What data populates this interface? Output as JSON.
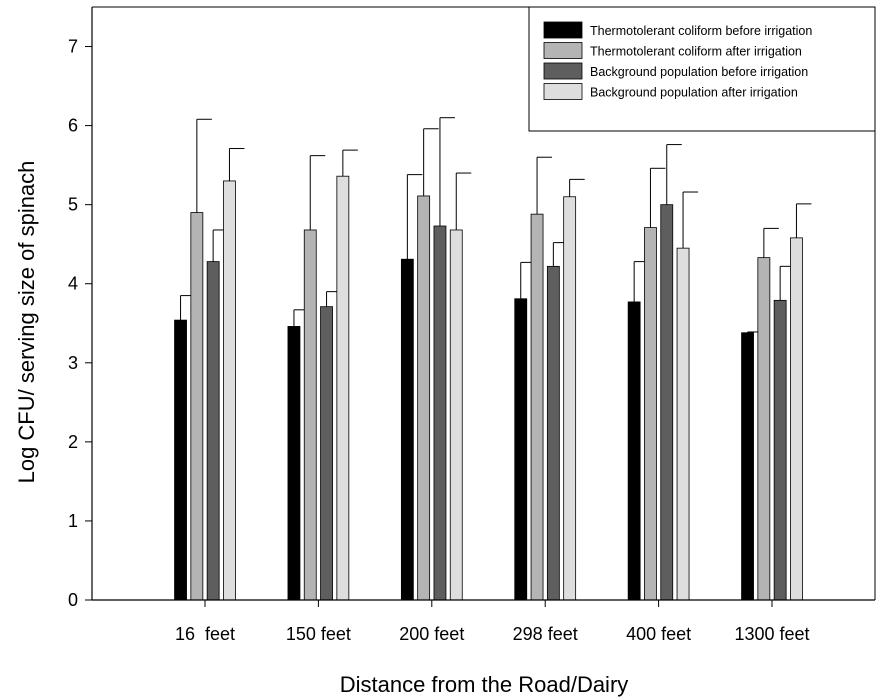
{
  "chart_data": {
    "type": "bar",
    "xlabel": "Distance from the Road/Dairy",
    "ylabel": "Log CFU/ serving size of spinach",
    "ylim": [
      0,
      7.5
    ],
    "yticks": [
      0,
      1,
      2,
      3,
      4,
      5,
      6,
      7
    ],
    "categories": [
      "16  feet",
      "150 feet",
      "200 feet",
      "298 feet",
      "400 feet",
      "1300 feet"
    ],
    "legend_position": "top-right",
    "series": [
      {
        "name": "Thermotolerant coliform before irrigation",
        "color": "#000000",
        "values": [
          3.54,
          3.46,
          4.31,
          3.81,
          3.77,
          3.38
        ],
        "errors": [
          0.31,
          0.21,
          1.07,
          0.46,
          0.51,
          0.01
        ]
      },
      {
        "name": "Thermotolerant coliform after irrigation",
        "color": "#b4b4b4",
        "values": [
          4.9,
          4.68,
          5.11,
          4.88,
          4.71,
          4.33
        ],
        "errors": [
          1.18,
          0.94,
          0.85,
          0.72,
          0.75,
          0.37
        ]
      },
      {
        "name": "Background population before irrigation",
        "color": "#5e5e5e",
        "values": [
          4.28,
          3.71,
          4.73,
          4.22,
          5.0,
          3.79
        ],
        "errors": [
          0.4,
          0.19,
          1.37,
          0.3,
          0.76,
          0.43
        ]
      },
      {
        "name": "Background population after irrigation",
        "color": "#dedede",
        "values": [
          5.3,
          5.36,
          4.68,
          5.1,
          4.45,
          4.58
        ],
        "errors": [
          0.41,
          0.33,
          0.72,
          0.22,
          0.71,
          0.43
        ]
      }
    ]
  }
}
